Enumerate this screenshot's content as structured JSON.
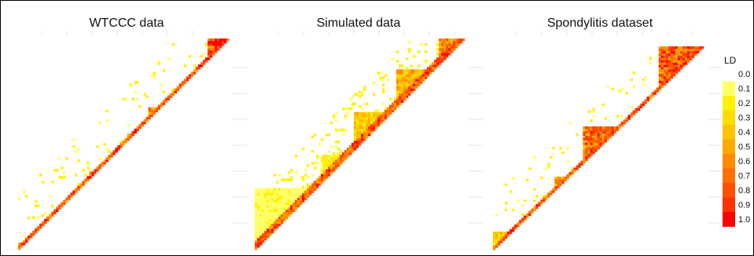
{
  "chart_data": {
    "type": "heatmap",
    "panels": [
      {
        "title": "WTCCC data"
      },
      {
        "title": "Simulated data"
      },
      {
        "title": "Spondylitis dataset"
      }
    ],
    "legend": {
      "title": "LD",
      "placement": "right",
      "breaks": [
        "0.0",
        "0.1",
        "0.2",
        "0.3",
        "0.4",
        "0.5",
        "0.6",
        "0.7",
        "0.8",
        "0.9",
        "1.0"
      ],
      "colors": [
        "#ffffff",
        "#ffff66",
        "#fff200",
        "#ffdc00",
        "#ffc400",
        "#ffaa00",
        "#ff8c00",
        "#ff6e00",
        "#ff5000",
        "#ff3200",
        "#ff0000"
      ]
    }
  }
}
